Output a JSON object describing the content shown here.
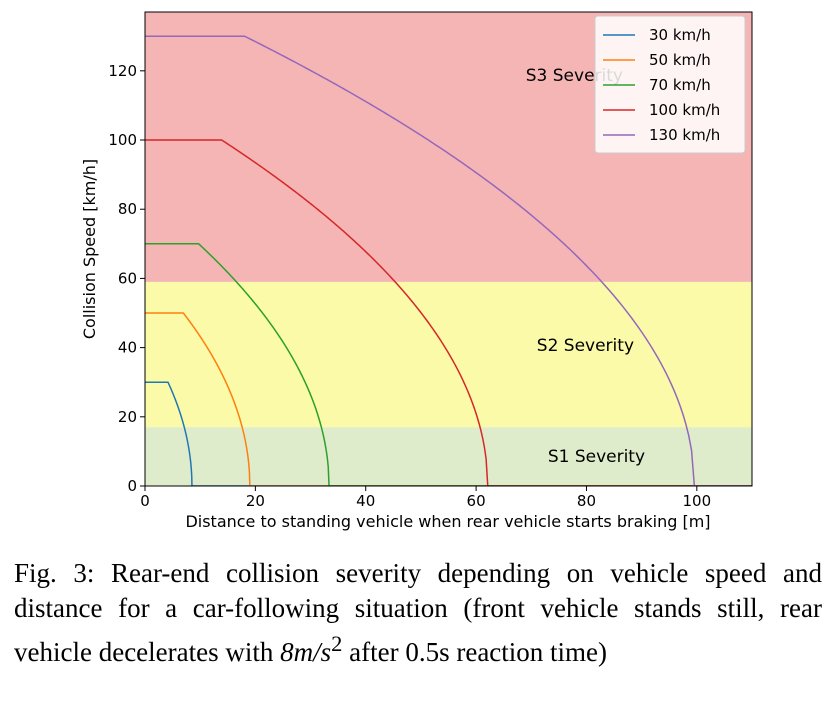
{
  "chart_data": {
    "type": "line",
    "xlabel": "Distance to standing vehicle when rear vehicle starts braking [m]",
    "ylabel": "Collision Speed [km/h]",
    "xlim": [
      0,
      110
    ],
    "ylim": [
      0,
      137
    ],
    "x_ticks": [
      0,
      20,
      40,
      60,
      80,
      100
    ],
    "y_ticks": [
      0,
      20,
      40,
      60,
      80,
      100,
      120
    ],
    "grid": false,
    "legend_position": "top-right",
    "deceleration_m_s2": 8,
    "reaction_time_s": 0.5,
    "bands": [
      {
        "label": "S1 Severity",
        "from": 0,
        "to": 17,
        "color": "#dfeccc",
        "label_x": 73,
        "label_y": 7
      },
      {
        "label": "S2 Severity",
        "from": 17,
        "to": 59,
        "color": "#fafaa8",
        "label_x": 71,
        "label_y": 39
      },
      {
        "label": "S3 Severity",
        "from": 59,
        "to": 137,
        "color": "#f4b5b4",
        "label_x": 69,
        "label_y": 117
      }
    ],
    "series": [
      {
        "name": "30 km/h",
        "speed": 30,
        "color": "#1f77b4"
      },
      {
        "name": "50 km/h",
        "speed": 50,
        "color": "#ff7f0e"
      },
      {
        "name": "70 km/h",
        "speed": 70,
        "color": "#2ca02c"
      },
      {
        "name": "100 km/h",
        "speed": 100,
        "color": "#d62728"
      },
      {
        "name": "130 km/h",
        "speed": 130,
        "color": "#9467bd"
      }
    ]
  },
  "caption": {
    "fig_label": "Fig. 3:",
    "text_before_math": "Rear-end collision severity depending on vehicle speed and distance for a car-following situation (front vehicle stands still, rear vehicle decelerates with",
    "math": "8m/s",
    "math_sup": "2",
    "text_after_math": "after 0.5s reaction time)"
  }
}
